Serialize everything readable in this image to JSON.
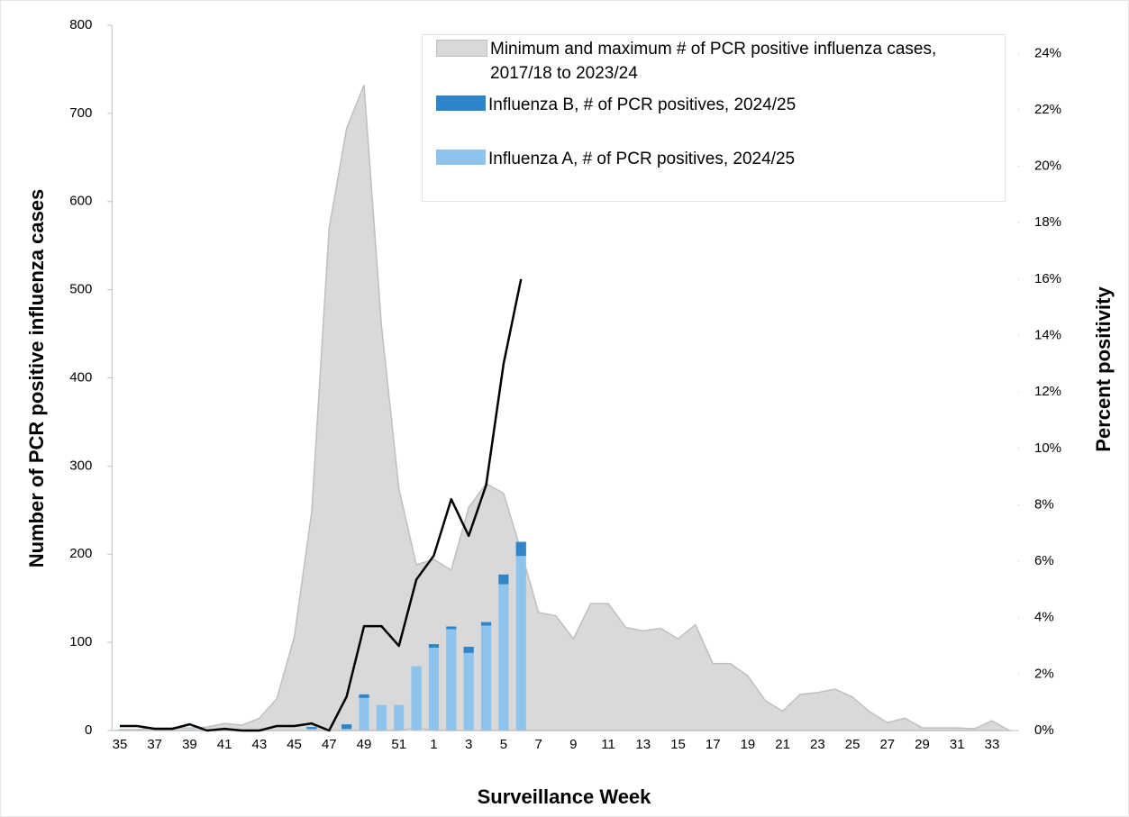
{
  "chart_data": {
    "type": "combo",
    "categories": [
      "35",
      null,
      "37",
      null,
      "39",
      null,
      "41",
      null,
      "43",
      null,
      "45",
      null,
      "47",
      null,
      "49",
      null,
      "51",
      null,
      "1",
      null,
      "3",
      null,
      "5",
      null,
      "7",
      null,
      "9",
      null,
      "11",
      null,
      "13",
      null,
      "15",
      null,
      "17",
      null,
      "19",
      null,
      "21",
      null,
      "23",
      null,
      "25",
      null,
      "27",
      null,
      "29",
      null,
      "31",
      null,
      "33",
      null
    ],
    "x_label": "Surveillance Week",
    "y_label": "Number of PCR positive influenza cases",
    "y2_label": "Percent positivity",
    "ylim": [
      0,
      800
    ],
    "yticks": [
      0,
      100,
      200,
      300,
      400,
      500,
      600,
      700,
      800
    ],
    "y2lim": [
      0,
      25
    ],
    "y2ticks": [
      {
        "value": 0,
        "label": "0%"
      },
      {
        "value": 2,
        "label": "2%"
      },
      {
        "value": 4,
        "label": "4%"
      },
      {
        "value": 6,
        "label": "6%"
      },
      {
        "value": 8,
        "label": "8%"
      },
      {
        "value": 10,
        "label": "10%"
      },
      {
        "value": 12,
        "label": "12%"
      },
      {
        "value": 14,
        "label": "14%"
      },
      {
        "value": 16,
        "label": "16%"
      },
      {
        "value": 18,
        "label": "18%"
      },
      {
        "value": 20,
        "label": "20%"
      },
      {
        "value": 22,
        "label": "22%"
      },
      {
        "value": 24,
        "label": "24%"
      }
    ],
    "series": [
      {
        "name": "Minimum and maximum # of PCR positive influenza cases, 2017/18 to 2023/24",
        "type": "area_range",
        "color": "#d9d9d9",
        "values": [
          1,
          1,
          3,
          3,
          3,
          4,
          8,
          6,
          14,
          36,
          106,
          248,
          570,
          683,
          732,
          459,
          274,
          188,
          194,
          182,
          253,
          280,
          269,
          204,
          134,
          130,
          104,
          144,
          144,
          117,
          113,
          116,
          104,
          120,
          76,
          76,
          62,
          34,
          22,
          41,
          43,
          47,
          38,
          21,
          9,
          14,
          3,
          3,
          3,
          2,
          11,
          0
        ],
        "low": [
          0,
          0,
          0,
          0,
          0,
          0,
          0,
          0,
          0,
          0,
          0,
          0,
          0,
          0,
          0,
          0,
          0,
          3,
          0,
          0,
          0,
          0,
          0,
          0,
          0,
          0,
          0,
          0,
          0,
          0,
          0,
          0,
          0,
          0,
          0,
          0,
          0,
          0,
          0,
          0,
          0,
          0,
          0,
          0,
          0,
          0,
          0,
          0,
          0,
          0,
          0,
          0
        ]
      },
      {
        "name": "Influenza B, # of PCR positives, 2024/25",
        "type": "bar",
        "color": "#2e86c9",
        "values": [
          0,
          0,
          0,
          0,
          0,
          0,
          0,
          0,
          0,
          0,
          0,
          2,
          0,
          5,
          4,
          0,
          0,
          0,
          4,
          3,
          7,
          4,
          11,
          16,
          null,
          null,
          null,
          null,
          null,
          null,
          null,
          null,
          null,
          null,
          null,
          null,
          null,
          null,
          null,
          null,
          null,
          null,
          null,
          null,
          null,
          null,
          null,
          null,
          null,
          null,
          null,
          null
        ]
      },
      {
        "name": "Influenza A, # of PCR positives, 2024/25",
        "type": "bar",
        "color": "#8ec3ec",
        "values": [
          1,
          0,
          0,
          0,
          1,
          0,
          0,
          0,
          0,
          0,
          0,
          2,
          0,
          2,
          37,
          29,
          29,
          73,
          94,
          115,
          88,
          119,
          166,
          198,
          null,
          null,
          null,
          null,
          null,
          null,
          null,
          null,
          null,
          null,
          null,
          null,
          null,
          null,
          null,
          null,
          null,
          null,
          null,
          null,
          null,
          null,
          null,
          null,
          null,
          null,
          null,
          null
        ]
      },
      {
        "type": "line",
        "axis": "y2",
        "color": "#000000",
        "values": [
          0.16,
          0.16,
          0.06,
          0.06,
          0.22,
          0,
          0.06,
          0,
          0,
          0.16,
          0.16,
          0.25,
          0,
          1.2,
          3.7,
          3.7,
          3.0,
          5.35,
          6.2,
          8.2,
          6.9,
          8.7,
          13.0,
          16.0,
          null,
          null,
          null,
          null,
          null,
          null,
          null,
          null,
          null,
          null,
          null,
          null,
          null,
          null,
          null,
          null,
          null,
          null,
          null,
          null,
          null,
          null,
          null,
          null,
          null,
          null,
          null,
          null
        ]
      }
    ]
  }
}
